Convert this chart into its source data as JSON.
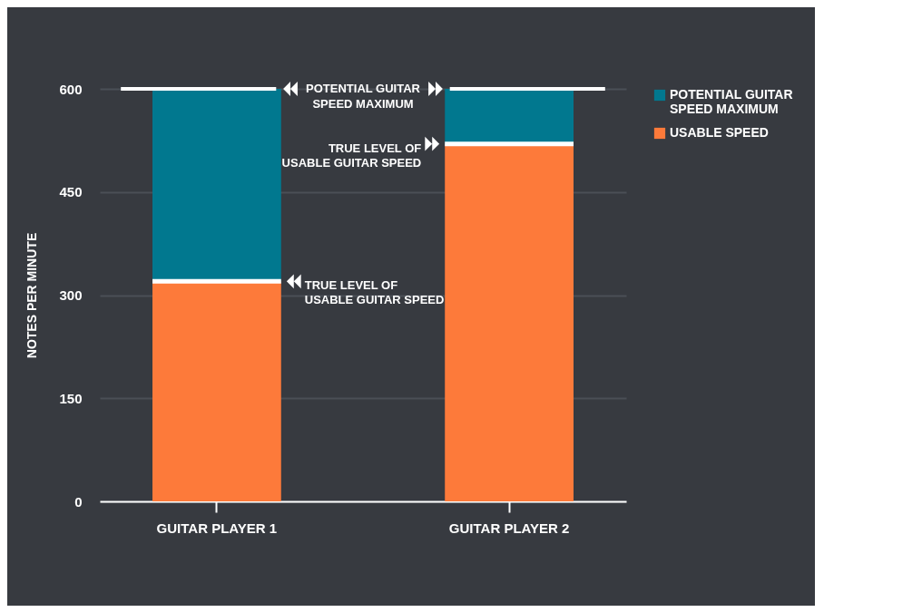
{
  "chart_data": {
    "type": "bar",
    "stacked": true,
    "categories": [
      "GUITAR PLAYER 1",
      "GUITAR PLAYER 2"
    ],
    "series": [
      {
        "name": "USABLE SPEED",
        "color": "#fd7a3a",
        "values": [
          320,
          520
        ]
      },
      {
        "name": "POTENTIAL GUITAR SPEED MAXIMUM",
        "color": "#01788f",
        "values": [
          280,
          80
        ]
      }
    ],
    "ylabel": "NOTES PER MINUTE",
    "ylim": [
      0,
      600
    ],
    "yticks": [
      0,
      150,
      300,
      450,
      600
    ],
    "grid": "y",
    "legend": "right",
    "ref_lines": [
      {
        "axis": "y",
        "value": 600,
        "label": "POTENTIAL GUITAR SPEED MAXIMUM",
        "color": "#ffffff"
      }
    ],
    "annotations": [
      "TRUE LEVEL OF USABLE GUITAR SPEED",
      "TRUE LEVEL OF USABLE GUITAR SPEED"
    ]
  }
}
